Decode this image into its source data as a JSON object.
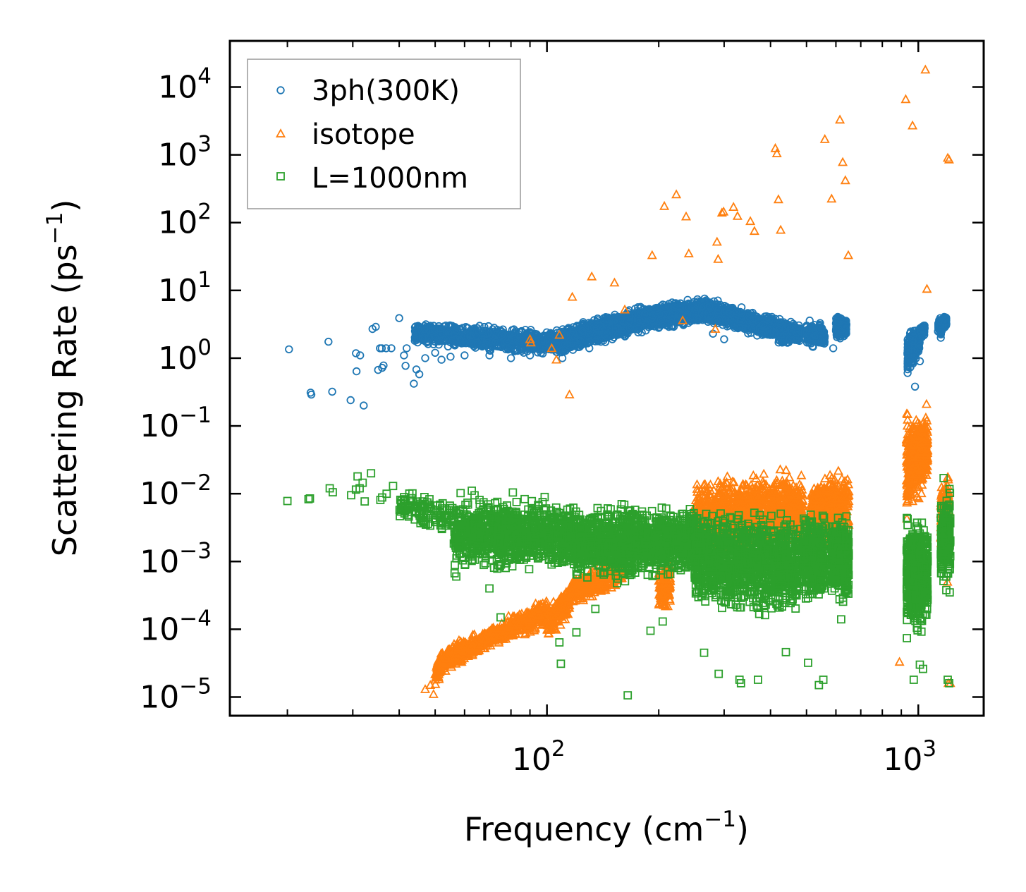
{
  "chart_data": {
    "type": "scatter",
    "xscale": "log",
    "yscale": "log",
    "xlim": [
      14,
      1500
    ],
    "ylim": [
      5.3e-06,
      48000
    ],
    "xlabel": {
      "text": "Frequency (cm",
      "sup": "−1",
      "tail": ")"
    },
    "ylabel": {
      "text": "Scattering Rate (ps",
      "sup": "−1",
      "tail": ")"
    },
    "xticks": [
      {
        "value": 100,
        "base": "10",
        "exp": "2"
      },
      {
        "value": 1000,
        "base": "10",
        "exp": "3"
      }
    ],
    "yticks": [
      {
        "value": 1e-05,
        "base": "10",
        "exp": "−5"
      },
      {
        "value": 0.0001,
        "base": "10",
        "exp": "−4"
      },
      {
        "value": 0.001,
        "base": "10",
        "exp": "−3"
      },
      {
        "value": 0.01,
        "base": "10",
        "exp": "−2"
      },
      {
        "value": 0.1,
        "base": "10",
        "exp": "−1"
      },
      {
        "value": 1,
        "base": "10",
        "exp": "0"
      },
      {
        "value": 10,
        "base": "10",
        "exp": "1"
      },
      {
        "value": 100,
        "base": "10",
        "exp": "2"
      },
      {
        "value": 1000,
        "base": "10",
        "exp": "3"
      },
      {
        "value": 10000,
        "base": "10",
        "exp": "4"
      }
    ],
    "legend": {
      "position": "upper-left"
    },
    "series": [
      {
        "name": "3ph(300K)",
        "marker": "circle",
        "color": "#1f77b4",
        "points": [
          [
            20.2,
            1.35
          ],
          [
            23.1,
            0.31
          ],
          [
            23.2,
            0.29
          ],
          [
            25.8,
            1.75
          ],
          [
            26.4,
            0.32
          ],
          [
            29.6,
            0.24
          ],
          [
            30.6,
            1.18
          ],
          [
            30.7,
            0.64
          ],
          [
            31.4,
            1.1
          ],
          [
            32.1,
            0.2
          ],
          [
            33.9,
            2.7
          ],
          [
            34.6,
            2.9
          ],
          [
            35.1,
            0.67
          ],
          [
            35.5,
            1.4
          ],
          [
            35.9,
            1.4
          ],
          [
            36.0,
            0.72
          ],
          [
            36.3,
            0.78
          ],
          [
            36.9,
            1.4
          ],
          [
            38.1,
            1.4
          ],
          [
            40.0,
            3.9
          ],
          [
            41.2,
            1.1
          ],
          [
            41.6,
            0.77
          ],
          [
            41.9,
            1.4
          ],
          [
            43.8,
            0.42
          ],
          [
            44.5,
            0.68
          ],
          [
            45.3,
            0.58
          ],
          [
            47.0,
            1.0
          ],
          [
            50.0,
            1.2
          ],
          [
            52.0,
            0.95
          ],
          [
            55.0,
            1.05
          ],
          [
            60.0,
            1.1
          ],
          [
            70.0,
            1.1
          ],
          [
            80.0,
            1.0
          ],
          [
            90.0,
            1.1
          ],
          [
            100.0,
            1.4
          ],
          [
            110.0,
            1.0
          ],
          [
            130.0,
            1.4
          ],
          [
            150.0,
            1.9
          ],
          [
            180.0,
            2.4
          ],
          [
            200.0,
            2.8
          ],
          [
            240.0,
            3.6
          ],
          [
            280.0,
            2.3
          ],
          [
            300.0,
            1.9
          ],
          [
            380.0,
            2.2
          ],
          [
            430.0,
            1.7
          ],
          [
            520.0,
            1.5
          ],
          [
            590.0,
            1.4
          ],
          [
            940.0,
            1.3
          ],
          [
            980.0,
            0.38
          ],
          [
            1010.0,
            0.9
          ],
          [
            1150.0,
            2.0
          ],
          [
            1180.0,
            3.4
          ]
        ],
        "bands": [
          {
            "x0": 44.0,
            "x1": 105.0,
            "ylo0": 1.5,
            "ylo1": 1.0,
            "yhi0": 3.6,
            "yhi1": 2.8,
            "n": 900
          },
          {
            "x0": 105.0,
            "x1": 175.0,
            "ylo0": 1.0,
            "ylo1": 2.2,
            "yhi0": 2.8,
            "yhi1": 6.0,
            "n": 1100
          },
          {
            "x0": 175.0,
            "x1": 270.0,
            "ylo0": 2.2,
            "ylo1": 3.3,
            "yhi0": 6.0,
            "yhi1": 8.5,
            "n": 1100
          },
          {
            "x0": 270.0,
            "x1": 420.0,
            "ylo0": 3.0,
            "ylo1": 1.8,
            "yhi0": 8.0,
            "yhi1": 4.0,
            "n": 900
          },
          {
            "x0": 420.0,
            "x1": 480.0,
            "ylo0": 1.5,
            "ylo1": 1.6,
            "yhi0": 4.0,
            "yhi1": 3.5,
            "n": 300
          },
          {
            "x0": 500.0,
            "x1": 560.0,
            "ylo0": 1.3,
            "ylo1": 1.4,
            "yhi0": 4.0,
            "yhi1": 3.3,
            "n": 220
          },
          {
            "x0": 600.0,
            "x1": 640.0,
            "ylo0": 1.8,
            "ylo1": 2.0,
            "yhi0": 4.5,
            "yhi1": 4.0,
            "n": 200
          },
          {
            "x0": 935.0,
            "x1": 1010.0,
            "ylo0": 0.45,
            "ylo1": 1.2,
            "yhi0": 2.8,
            "yhi1": 3.2,
            "n": 260
          },
          {
            "x0": 1010.0,
            "x1": 1040.0,
            "ylo0": 1.8,
            "ylo1": 2.0,
            "yhi0": 3.2,
            "yhi1": 3.4,
            "n": 60
          },
          {
            "x0": 1130.0,
            "x1": 1190.0,
            "ylo0": 2.0,
            "ylo1": 2.6,
            "yhi0": 4.2,
            "yhi1": 5.0,
            "n": 140
          }
        ]
      },
      {
        "name": "isotope",
        "marker": "triangle",
        "color": "#ff7f0e",
        "points": [
          [
            47.0,
            1.3e-05
          ],
          [
            48.5,
            1.5e-05
          ],
          [
            49.5,
            1.1e-05
          ],
          [
            90.0,
            1.9
          ],
          [
            90.5,
            1.7
          ],
          [
            103.0,
            1.4
          ],
          [
            106.0,
            0.95
          ],
          [
            108.0,
            2.2
          ],
          [
            115.0,
            0.29
          ],
          [
            117.0,
            8.0
          ],
          [
            132.0,
            16.0
          ],
          [
            152.0,
            13.0
          ],
          [
            162.0,
            5.2
          ],
          [
            192.0,
            33.0
          ],
          [
            207.0,
            175.0
          ],
          [
            223.0,
            260.0
          ],
          [
            232.0,
            3.6
          ],
          [
            237.0,
            123.0
          ],
          [
            241.0,
            35.0
          ],
          [
            284.0,
            2.7
          ],
          [
            287.0,
            52.0
          ],
          [
            289.0,
            29.0
          ],
          [
            296.0,
            140.0
          ],
          [
            299.0,
            145.0
          ],
          [
            318.0,
            170.0
          ],
          [
            326.0,
            125.0
          ],
          [
            353.0,
            105.0
          ],
          [
            362.0,
            75.0
          ],
          [
            412.0,
            1250.0
          ],
          [
            416.0,
            1050.0
          ],
          [
            420.0,
            220.0
          ],
          [
            426.0,
            78.0
          ],
          [
            560.0,
            1700.0
          ],
          [
            584.0,
            225.0
          ],
          [
            615.0,
            3300.0
          ],
          [
            626.0,
            780.0
          ],
          [
            636.0,
            420.0
          ],
          [
            648.0,
            33.0
          ],
          [
            925.0,
            6600.0
          ],
          [
            965.0,
            2700.0
          ],
          [
            1045.0,
            18000.0
          ],
          [
            1055.0,
            10.5
          ],
          [
            1052.0,
            0.21
          ],
          [
            1200.0,
            900.0
          ],
          [
            1210.0,
            850.0
          ],
          [
            1198.0,
            0.0005
          ],
          [
            1205.0,
            1.6e-05
          ],
          [
            1220.0,
            1.6e-05
          ],
          [
            890.0,
            3.3e-05
          ]
        ],
        "bands": [
          {
            "x0": 50.0,
            "x1": 52.0,
            "ylo0": 1.2e-05,
            "ylo1": 2e-05,
            "yhi0": 3.5e-05,
            "yhi1": 5e-05,
            "n": 60
          },
          {
            "x0": 52.0,
            "x1": 68.0,
            "ylo0": 2e-05,
            "ylo1": 4.5e-05,
            "yhi0": 5.5e-05,
            "yhi1": 0.00011,
            "n": 300
          },
          {
            "x0": 68.0,
            "x1": 100.0,
            "ylo0": 4.5e-05,
            "ylo1": 0.0001,
            "yhi0": 0.00011,
            "yhi1": 0.00032,
            "n": 350
          },
          {
            "x0": 100.0,
            "x1": 115.0,
            "ylo0": 6e-05,
            "ylo1": 0.00014,
            "yhi0": 0.00026,
            "yhi1": 0.0005,
            "n": 160
          },
          {
            "x0": 115.0,
            "x1": 160.0,
            "ylo0": 0.0002,
            "ylo1": 0.0004,
            "yhi0": 0.0006,
            "yhi1": 0.0014,
            "n": 300
          },
          {
            "x0": 200.0,
            "x1": 215.0,
            "ylo0": 0.00015,
            "ylo1": 0.00016,
            "yhi0": 0.0011,
            "yhi1": 0.0013,
            "n": 120
          },
          {
            "x0": 250.0,
            "x1": 450.0,
            "ylo0": 0.001,
            "ylo1": 0.0013,
            "yhi0": 0.018,
            "yhi1": 0.032,
            "n": 1000
          },
          {
            "x0": 450.0,
            "x1": 490.0,
            "ylo0": 0.0015,
            "ylo1": 0.0015,
            "yhi0": 0.02,
            "yhi1": 0.025,
            "n": 160
          },
          {
            "x0": 515.0,
            "x1": 650.0,
            "ylo0": 0.0015,
            "ylo1": 0.0016,
            "yhi0": 0.018,
            "yhi1": 0.03,
            "n": 500
          },
          {
            "x0": 930.0,
            "x1": 1060.0,
            "ylo0": 0.003,
            "ylo1": 0.015,
            "yhi0": 0.2,
            "yhi1": 0.15,
            "n": 450
          },
          {
            "x0": 1150.0,
            "x1": 1210.0,
            "ylo0": 0.001,
            "ylo1": 0.0015,
            "yhi0": 0.015,
            "yhi1": 0.025,
            "n": 150
          }
        ]
      },
      {
        "name": "L=1000nm",
        "marker": "square",
        "color": "#2ca02c",
        "points": [
          [
            20.0,
            0.0078
          ],
          [
            22.8,
            0.0083
          ],
          [
            23.0,
            0.0085
          ],
          [
            26.0,
            0.012
          ],
          [
            26.5,
            0.0105
          ],
          [
            29.7,
            0.0095
          ],
          [
            30.6,
            0.0115
          ],
          [
            30.9,
            0.018
          ],
          [
            31.3,
            0.012
          ],
          [
            31.9,
            0.0145
          ],
          [
            32.3,
            0.0077
          ],
          [
            33.6,
            0.02
          ],
          [
            35.6,
            0.0081
          ],
          [
            36.0,
            0.0088
          ],
          [
            37.0,
            0.01
          ],
          [
            38.5,
            0.013
          ],
          [
            56.4,
            0.00067
          ],
          [
            57.0,
            0.0006
          ],
          [
            70.0,
            0.0004
          ],
          [
            75.0,
            0.00015
          ],
          [
            108.0,
            6.4e-05
          ],
          [
            109.0,
            3.1e-05
          ],
          [
            120.0,
            9e-05
          ],
          [
            135.0,
            0.0002
          ],
          [
            165.0,
            1.06e-05
          ],
          [
            190.0,
            9.5e-05
          ],
          [
            205.0,
            0.00013
          ],
          [
            265.0,
            4.5e-05
          ],
          [
            290.0,
            2.2e-05
          ],
          [
            330.0,
            1.8e-05
          ],
          [
            333.0,
            1.6e-05
          ],
          [
            370.0,
            1.8e-05
          ],
          [
            440.0,
            4.6e-05
          ],
          [
            505.0,
            3.2e-05
          ],
          [
            540.0,
            1.5e-05
          ],
          [
            555.0,
            1.8e-05
          ],
          [
            620.0,
            0.00014
          ],
          [
            972.0,
            1.8e-05
          ],
          [
            1010.0,
            3e-05
          ],
          [
            1030.0,
            2.6e-05
          ],
          [
            1200.0,
            1.8e-05
          ],
          [
            1211.0,
            1.6e-05
          ],
          [
            1215.0,
            0.00035
          ],
          [
            1170.0,
            0.017
          ]
        ],
        "bands": [
          {
            "x0": 40.0,
            "x1": 56.0,
            "ylo0": 0.004,
            "ylo1": 0.0015,
            "yhi0": 0.012,
            "yhi1": 0.013,
            "n": 120
          },
          {
            "x0": 56.0,
            "x1": 120.0,
            "ylo0": 0.0006,
            "ylo1": 0.0006,
            "yhi0": 0.012,
            "yhi1": 0.01,
            "n": 1000
          },
          {
            "x0": 120.0,
            "x1": 250.0,
            "ylo0": 0.0004,
            "ylo1": 0.0005,
            "yhi0": 0.008,
            "yhi1": 0.0085,
            "n": 1200
          },
          {
            "x0": 250.0,
            "x1": 480.0,
            "ylo0": 0.00015,
            "ylo1": 0.00012,
            "yhi0": 0.008,
            "yhi1": 0.007,
            "n": 1200
          },
          {
            "x0": 490.0,
            "x1": 560.0,
            "ylo0": 0.0002,
            "ylo1": 0.0002,
            "yhi0": 0.006,
            "yhi1": 0.0065,
            "n": 400
          },
          {
            "x0": 585.0,
            "x1": 650.0,
            "ylo0": 0.0002,
            "ylo1": 0.0002,
            "yhi0": 0.006,
            "yhi1": 0.0065,
            "n": 400
          },
          {
            "x0": 930.0,
            "x1": 1060.0,
            "ylo0": 5e-05,
            "ylo1": 0.0001,
            "yhi0": 0.006,
            "yhi1": 0.0045,
            "n": 600
          },
          {
            "x0": 1150.0,
            "x1": 1220.0,
            "ylo0": 0.0003,
            "ylo1": 0.00035,
            "yhi0": 0.012,
            "yhi1": 0.015,
            "n": 200
          }
        ]
      }
    ]
  }
}
